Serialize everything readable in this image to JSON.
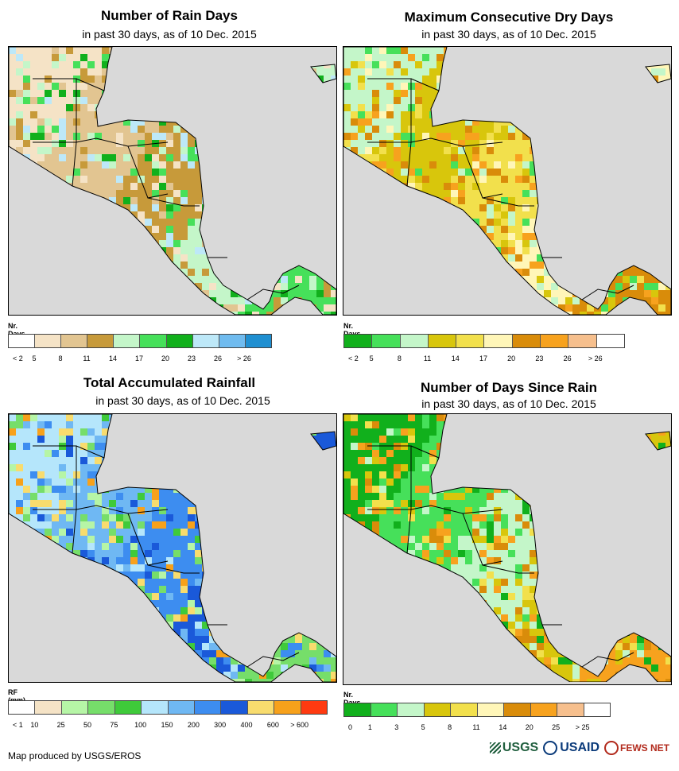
{
  "panels": [
    {
      "id": "rain-days",
      "title": "Number of Rain Days",
      "subtitle": "in past 30 days, as of 10 Dec. 2015",
      "legend_title": "Nr. Days",
      "legend_colors": [
        "#ffffff",
        "#f5e3c6",
        "#e2c591",
        "#c79a3a",
        "#c4f6c9",
        "#46e05a",
        "#11b01c",
        "#bde8f8",
        "#6fbbef",
        "#1f8fd1"
      ],
      "legend_labels": [
        "< 2",
        "5",
        "8",
        "11",
        "14",
        "17",
        "20",
        "23",
        "26",
        "> 26"
      ],
      "palette": [
        "#f5e3c6",
        "#e2c591",
        "#c79a3a",
        "#c4f6c9",
        "#46e05a",
        "#11b01c",
        "#bde8f8"
      ]
    },
    {
      "id": "max-dry-days",
      "title": "Maximum Consecutive Dry Days",
      "subtitle": "in past 30 days, as of 10 Dec. 2015",
      "legend_title": "Nr. Days",
      "legend_colors": [
        "#11b01c",
        "#46e05a",
        "#c4f6c9",
        "#d8c60c",
        "#f2e04c",
        "#fff6b8",
        "#d98c0a",
        "#f7a21e",
        "#f6bf8d",
        "#ffffff"
      ],
      "legend_labels": [
        "< 2",
        "5",
        "8",
        "11",
        "14",
        "17",
        "20",
        "23",
        "26",
        "> 26"
      ],
      "palette": [
        "#c4f6c9",
        "#d8c60c",
        "#f2e04c",
        "#fff6b8",
        "#d98c0a",
        "#f7a21e",
        "#46e05a"
      ]
    },
    {
      "id": "total-rainfall",
      "title": "Total Accumulated Rainfall",
      "subtitle": "in past 30 days, as of 10 Dec. 2015",
      "legend_title": "RF (mm)",
      "legend_colors": [
        "#ffffff",
        "#f5e3c6",
        "#b6f5a6",
        "#76de6a",
        "#3fca3a",
        "#b5e6fb",
        "#6fb8f3",
        "#3d8df0",
        "#1a59d9",
        "#f8dc6e",
        "#f7a11b",
        "#ff3a10"
      ],
      "legend_labels": [
        "< 1",
        "10",
        "25",
        "50",
        "75",
        "100",
        "150",
        "200",
        "300",
        "400",
        "600",
        "> 600"
      ],
      "palette": [
        "#b5e6fb",
        "#6fb8f3",
        "#3d8df0",
        "#1a59d9",
        "#76de6a",
        "#3fca3a",
        "#f8dc6e",
        "#f7a11b",
        "#b6f5a6"
      ]
    },
    {
      "id": "days-since-rain",
      "title": "Number of Days Since Rain",
      "subtitle": "in past 30 days, as of 10 Dec. 2015",
      "legend_title": "Nr. Days",
      "legend_colors": [
        "#11b01c",
        "#46e05a",
        "#c4f6c9",
        "#d8c60c",
        "#f2e04c",
        "#fff6b8",
        "#d98c0a",
        "#f7a21e",
        "#f6bf8d",
        "#ffffff"
      ],
      "legend_labels": [
        "0",
        "1",
        "3",
        "5",
        "8",
        "11",
        "14",
        "20",
        "25",
        "> 25"
      ],
      "palette": [
        "#11b01c",
        "#46e05a",
        "#c4f6c9",
        "#d8c60c",
        "#f7a21e",
        "#d98c0a",
        "#f2e04c"
      ]
    }
  ],
  "footer": {
    "credit": "Map produced by USGS/EROS"
  },
  "logos": {
    "usgs": "USGS",
    "usaid": "USAID",
    "fews": "FEWS NET"
  },
  "colors": {
    "ocean": "#d9d9d9",
    "border": "#000000"
  }
}
